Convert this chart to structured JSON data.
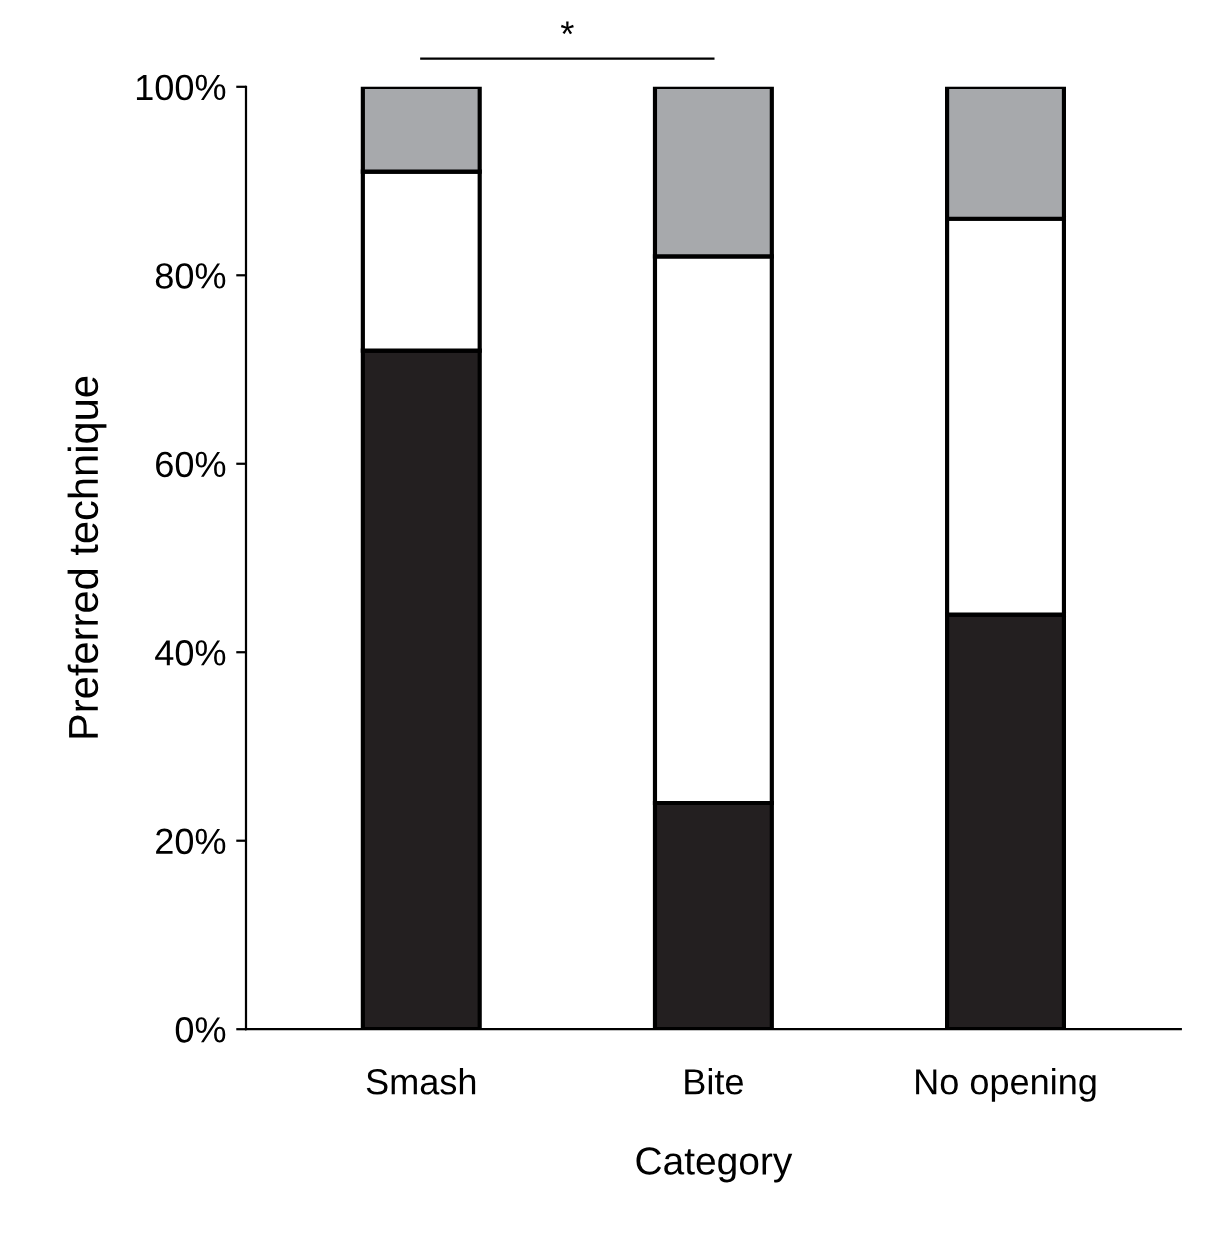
{
  "chart_data": {
    "type": "bar",
    "stacked": true,
    "xlabel": "Category",
    "ylabel": "Preferred technique",
    "categories": [
      "Smash",
      "Bite",
      "No opening"
    ],
    "series": [
      {
        "color": "#231f20",
        "values": [
          72,
          24,
          44
        ]
      },
      {
        "color": "#ffffff",
        "values": [
          19,
          58,
          42
        ]
      },
      {
        "color": "#a7a9ac",
        "values": [
          9,
          18,
          14
        ]
      }
    ],
    "ylim": [
      0,
      100
    ],
    "yticks": [
      {
        "value": 0,
        "label": "0%"
      },
      {
        "value": 20,
        "label": "20%"
      },
      {
        "value": 40,
        "label": "40%"
      },
      {
        "value": 60,
        "label": "60%"
      },
      {
        "value": 80,
        "label": "80%"
      },
      {
        "value": 100,
        "label": "100%"
      }
    ],
    "annotations": [
      "*"
    ],
    "grid": false,
    "legend": false
  }
}
